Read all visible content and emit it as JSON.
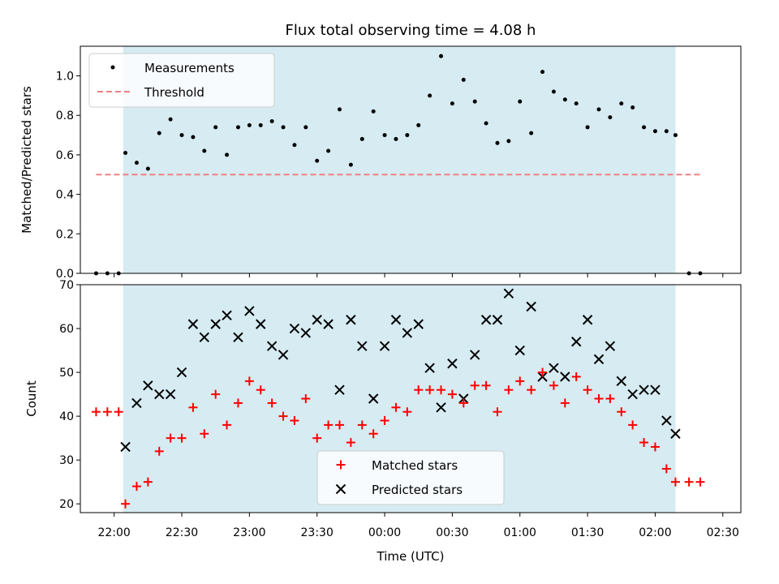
{
  "chart_data": [
    {
      "type": "scatter",
      "title": "Flux total observing time = 4.08 h",
      "xlabel": "",
      "ylabel": "Matched/Predicted stars",
      "xlim": [
        "21:45",
        "02:38"
      ],
      "ylim": [
        0,
        1.15
      ],
      "yticks": [
        "0.0",
        "0.2",
        "0.4",
        "0.6",
        "0.8",
        "1.0"
      ],
      "shaded_interval": [
        "22:04",
        "02:09"
      ],
      "grid": false,
      "legend": "upper left",
      "series": [
        {
          "name": "Measurements",
          "color": "#000000",
          "x": [
            "21:52",
            "21:57",
            "22:02",
            "22:05",
            "22:10",
            "22:15",
            "22:20",
            "22:25",
            "22:30",
            "22:35",
            "22:40",
            "22:45",
            "22:50",
            "22:55",
            "23:00",
            "23:05",
            "23:10",
            "23:15",
            "23:20",
            "23:25",
            "23:30",
            "23:35",
            "23:40",
            "23:45",
            "23:50",
            "23:55",
            "00:00",
            "00:05",
            "00:10",
            "00:15",
            "00:20",
            "00:25",
            "00:30",
            "00:35",
            "00:40",
            "00:45",
            "00:50",
            "00:55",
            "01:00",
            "01:05",
            "01:10",
            "01:15",
            "01:20",
            "01:25",
            "01:30",
            "01:35",
            "01:40",
            "01:45",
            "01:50",
            "01:55",
            "02:00",
            "02:05",
            "02:09",
            "02:15",
            "02:20"
          ],
          "y": [
            0.0,
            0.0,
            0.0,
            0.61,
            0.56,
            0.53,
            0.71,
            0.78,
            0.7,
            0.69,
            0.62,
            0.74,
            0.6,
            0.74,
            0.75,
            0.75,
            0.77,
            0.74,
            0.65,
            0.74,
            0.57,
            0.62,
            0.83,
            0.55,
            0.68,
            0.82,
            0.7,
            0.68,
            0.7,
            0.75,
            0.9,
            1.1,
            0.86,
            0.98,
            0.87,
            0.76,
            0.66,
            0.67,
            0.87,
            0.71,
            1.02,
            0.92,
            0.88,
            0.86,
            0.74,
            0.83,
            0.79,
            0.86,
            0.84,
            0.74,
            0.72,
            0.72,
            0.7,
            0.0,
            0.0
          ]
        },
        {
          "name": "Threshold",
          "color": "#f08080",
          "x": [
            "21:52",
            "02:20"
          ],
          "y": [
            0.5,
            0.5
          ]
        }
      ]
    },
    {
      "type": "scatter",
      "title": "",
      "xlabel": "Time (UTC)",
      "ylabel": "Count",
      "xlim": [
        "21:45",
        "02:38"
      ],
      "ylim": [
        18,
        70
      ],
      "yticks": [
        "20",
        "30",
        "40",
        "50",
        "60",
        "70"
      ],
      "xticks": [
        "22:00",
        "22:30",
        "23:00",
        "23:30",
        "00:00",
        "00:30",
        "01:00",
        "01:30",
        "02:00",
        "02:30"
      ],
      "shaded_interval": [
        "22:04",
        "02:09"
      ],
      "grid": false,
      "legend": "lower center",
      "series": [
        {
          "name": "Matched stars",
          "color": "#ff0000",
          "marker": "plus",
          "x": [
            "21:52",
            "21:57",
            "22:02",
            "22:05",
            "22:10",
            "22:15",
            "22:20",
            "22:25",
            "22:30",
            "22:35",
            "22:40",
            "22:45",
            "22:50",
            "22:55",
            "23:00",
            "23:05",
            "23:10",
            "23:15",
            "23:20",
            "23:25",
            "23:30",
            "23:35",
            "23:40",
            "23:45",
            "23:50",
            "23:55",
            "00:00",
            "00:05",
            "00:10",
            "00:15",
            "00:20",
            "00:25",
            "00:30",
            "00:35",
            "00:40",
            "00:45",
            "00:50",
            "00:55",
            "01:00",
            "01:05",
            "01:10",
            "01:15",
            "01:20",
            "01:25",
            "01:30",
            "01:35",
            "01:40",
            "01:45",
            "01:50",
            "01:55",
            "02:00",
            "02:05",
            "02:09",
            "02:15",
            "02:20"
          ],
          "y": [
            41,
            41,
            41,
            20,
            24,
            25,
            32,
            35,
            35,
            42,
            36,
            45,
            38,
            43,
            48,
            46,
            43,
            40,
            39,
            44,
            35,
            38,
            38,
            34,
            38,
            36,
            39,
            42,
            41,
            46,
            46,
            46,
            45,
            43,
            47,
            47,
            41,
            46,
            48,
            46,
            50,
            47,
            43,
            49,
            46,
            44,
            44,
            41,
            38,
            34,
            33,
            28,
            25,
            25,
            25
          ]
        },
        {
          "name": "Predicted stars",
          "color": "#000000",
          "marker": "x",
          "x": [
            "22:05",
            "22:10",
            "22:15",
            "22:20",
            "22:25",
            "22:30",
            "22:35",
            "22:40",
            "22:45",
            "22:50",
            "22:55",
            "23:00",
            "23:05",
            "23:10",
            "23:15",
            "23:20",
            "23:25",
            "23:30",
            "23:35",
            "23:40",
            "23:45",
            "23:50",
            "23:55",
            "00:00",
            "00:05",
            "00:10",
            "00:15",
            "00:20",
            "00:25",
            "00:30",
            "00:35",
            "00:40",
            "00:45",
            "00:50",
            "00:55",
            "01:00",
            "01:05",
            "01:10",
            "01:15",
            "01:20",
            "01:25",
            "01:30",
            "01:35",
            "01:40",
            "01:45",
            "01:50",
            "01:55",
            "02:00",
            "02:05",
            "02:09"
          ],
          "y": [
            33,
            43,
            47,
            45,
            45,
            50,
            61,
            58,
            61,
            63,
            58,
            64,
            61,
            56,
            54,
            60,
            59,
            62,
            61,
            46,
            62,
            56,
            44,
            56,
            62,
            59,
            61,
            51,
            42,
            52,
            44,
            54,
            62,
            62,
            68,
            55,
            65,
            49,
            51,
            49,
            57,
            62,
            53,
            56,
            48,
            45,
            46,
            46,
            39,
            36
          ]
        }
      ]
    }
  ]
}
